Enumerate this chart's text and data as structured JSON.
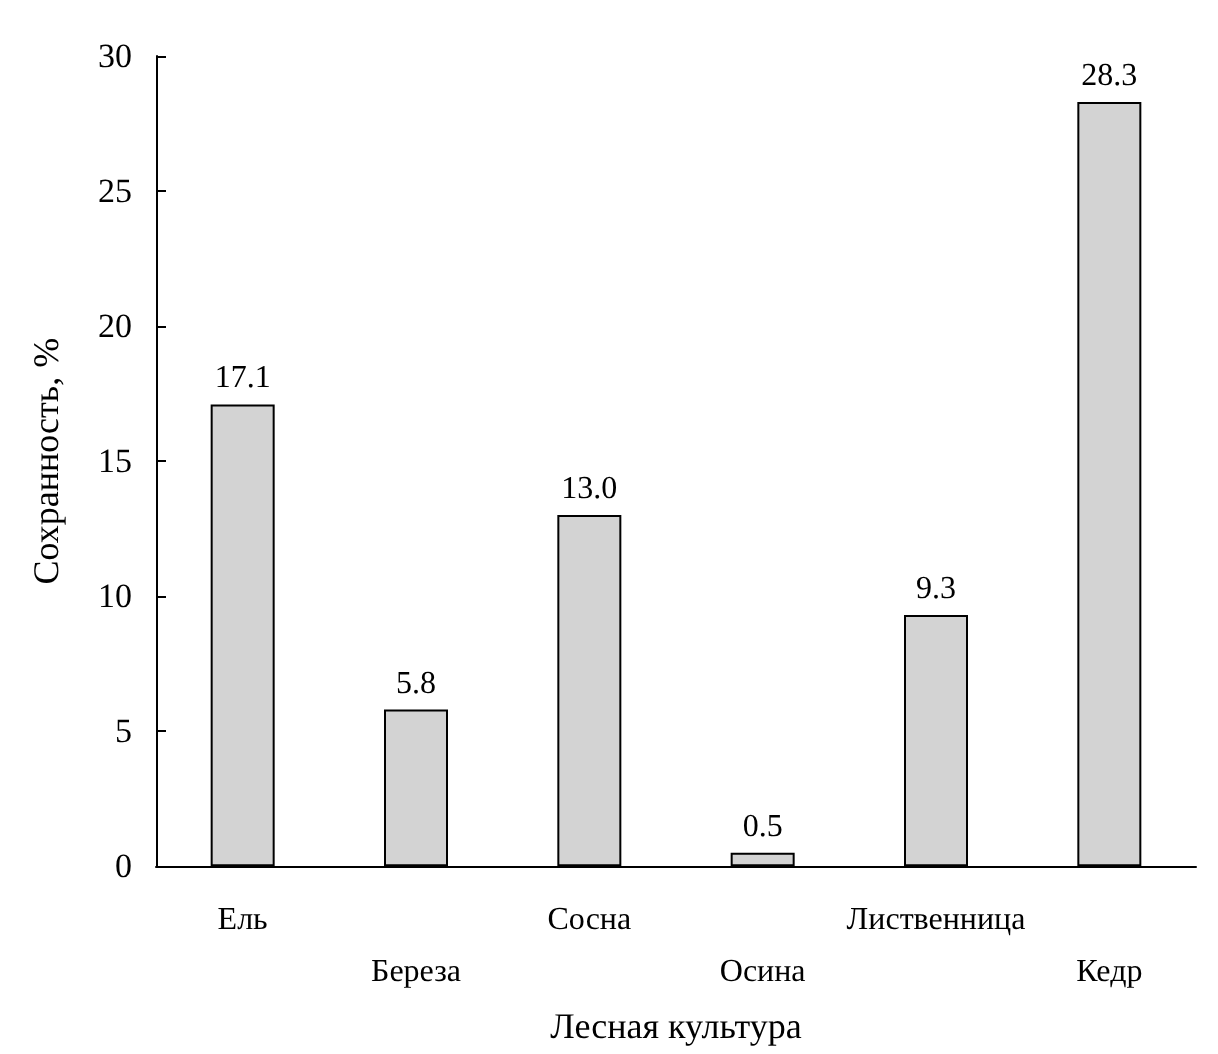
{
  "chart_data": {
    "type": "bar",
    "xlabel": "Лесная культура",
    "ylabel": "Сохранность, %",
    "categories": [
      "Ель",
      "Береза",
      "Сосна",
      "Осина",
      "Лиственница",
      "Кедр"
    ],
    "values": [
      17.1,
      5.8,
      13.0,
      0.5,
      9.3,
      28.3
    ],
    "value_labels": [
      "17.1",
      "5.8",
      "13.0",
      "0.5",
      "9.3",
      "28.3"
    ],
    "color": "#d3d3d3",
    "ylim": [
      0,
      30
    ],
    "yticks": [
      0,
      5,
      10,
      15,
      20,
      25,
      30
    ],
    "grid": false
  }
}
